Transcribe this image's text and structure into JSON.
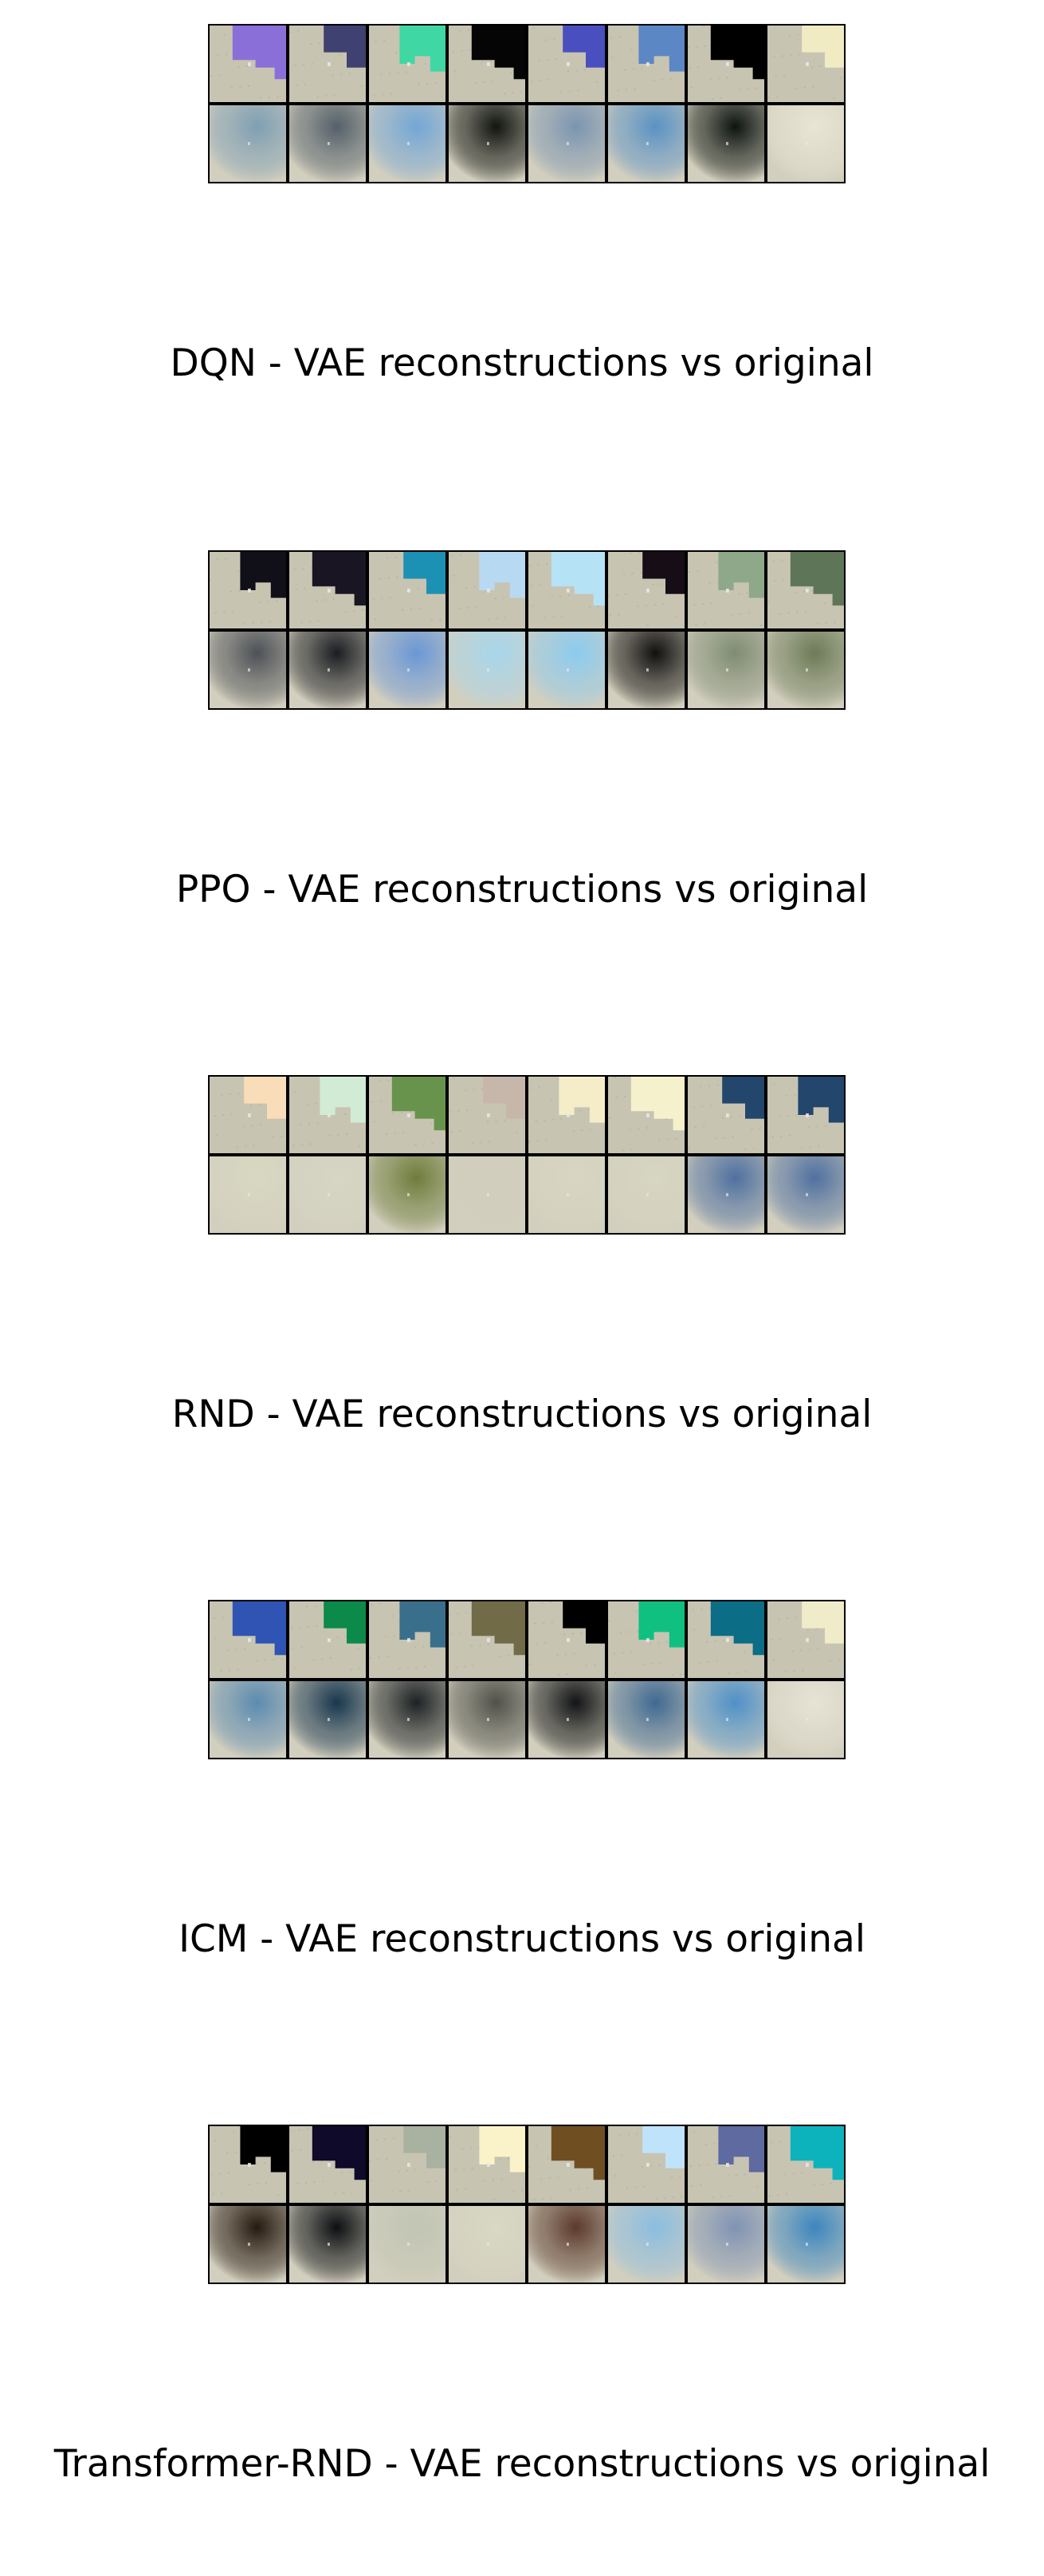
{
  "panels": [
    {
      "caption": "DQN - VAE reconstructions vs original",
      "originals": [
        "#8b6fd8",
        "#3f4170",
        "#3fd7a3",
        "#050505",
        "#4a4fc0",
        "#5b87c4",
        "#000000",
        "#f1ebc4"
      ],
      "reconstructions": [
        "#7f9fb4",
        "#55606a",
        "#74a6d6",
        "#111410",
        "#7b95b0",
        "#5b92c4",
        "#0d1410",
        "#e9e5d5"
      ]
    },
    {
      "caption": "PPO - VAE reconstructions vs original",
      "originals": [
        "#111018",
        "#1a1522",
        "#1d91b3",
        "#b7daf2",
        "#b6e2f6",
        "#160d17",
        "#8ea889",
        "#5e7558"
      ],
      "reconstructions": [
        "#4d5156",
        "#1b1d22",
        "#6b97d6",
        "#a8d6ec",
        "#8ccbef",
        "#121010",
        "#7f8c74",
        "#6c7b58"
      ]
    },
    {
      "caption": "RND - VAE reconstructions vs original",
      "originals": [
        "#f9dcb8",
        "#d2ebd4",
        "#68934d",
        "#c7b7aa",
        "#f4edc8",
        "#f4f1cc",
        "#23466c",
        "#23466c"
      ],
      "reconstructions": [
        "#d8d8c2",
        "#d6d6c4",
        "#6e7d3c",
        "#d2cebd",
        "#d8d6c2",
        "#d7d6c2",
        "#4f70a0",
        "#4f70a0"
      ]
    },
    {
      "caption": "ICM - VAE reconstructions vs original",
      "originals": [
        "#2f54b3",
        "#0c8a4a",
        "#3a6f8c",
        "#726b48",
        "#000000",
        "#0fc081",
        "#0b6d86",
        "#f0ecc9"
      ],
      "reconstructions": [
        "#5c8bb0",
        "#18374e",
        "#1c2224",
        "#50514a",
        "#121416",
        "#3f6992",
        "#4f91c8",
        "#e6e2d5"
      ]
    },
    {
      "caption": "Transformer-RND - VAE reconstructions vs original",
      "originals": [
        "#000000",
        "#0f0a2a",
        "#a9b1a0",
        "#faf3c9",
        "#6f4f22",
        "#bfe3fb",
        "#5e6aa0",
        "#0cb3bd"
      ],
      "reconstructions": [
        "#261a10",
        "#0c0f12",
        "#c1c5b4",
        "#d8d8c4",
        "#5b3a2c",
        "#8cbde0",
        "#7f93b4",
        "#3c86bf"
      ]
    }
  ],
  "colors": {
    "stone": "#c8c4b2",
    "stone_dark": "#9f9c8d",
    "border": "#000000",
    "text": "#000000"
  }
}
